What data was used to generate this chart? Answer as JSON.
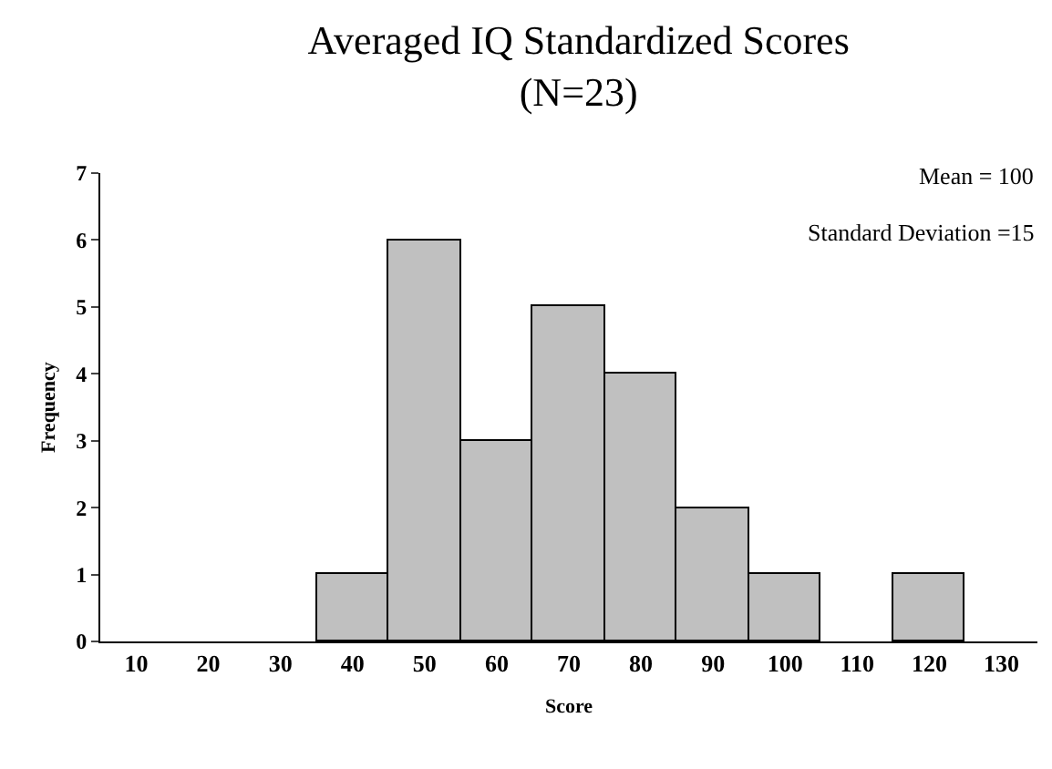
{
  "chart_data": {
    "type": "bar",
    "title": "Averaged IQ Standardized Scores\n(N=23)",
    "xlabel": "Score",
    "ylabel": "Frequency",
    "categories": [
      "10",
      "20",
      "30",
      "40",
      "50",
      "60",
      "70",
      "80",
      "90",
      "100",
      "110",
      "120",
      "130"
    ],
    "values": [
      0,
      0,
      0,
      1,
      6,
      3,
      5,
      4,
      2,
      1,
      0,
      1,
      0
    ],
    "color": "#c0c0c0",
    "ylim": [
      0,
      7
    ],
    "yticks": [
      0,
      1,
      2,
      3,
      4,
      5,
      6,
      7
    ],
    "grid": false,
    "annotations": [
      "Mean = 100",
      "Standard Deviation =15"
    ]
  }
}
